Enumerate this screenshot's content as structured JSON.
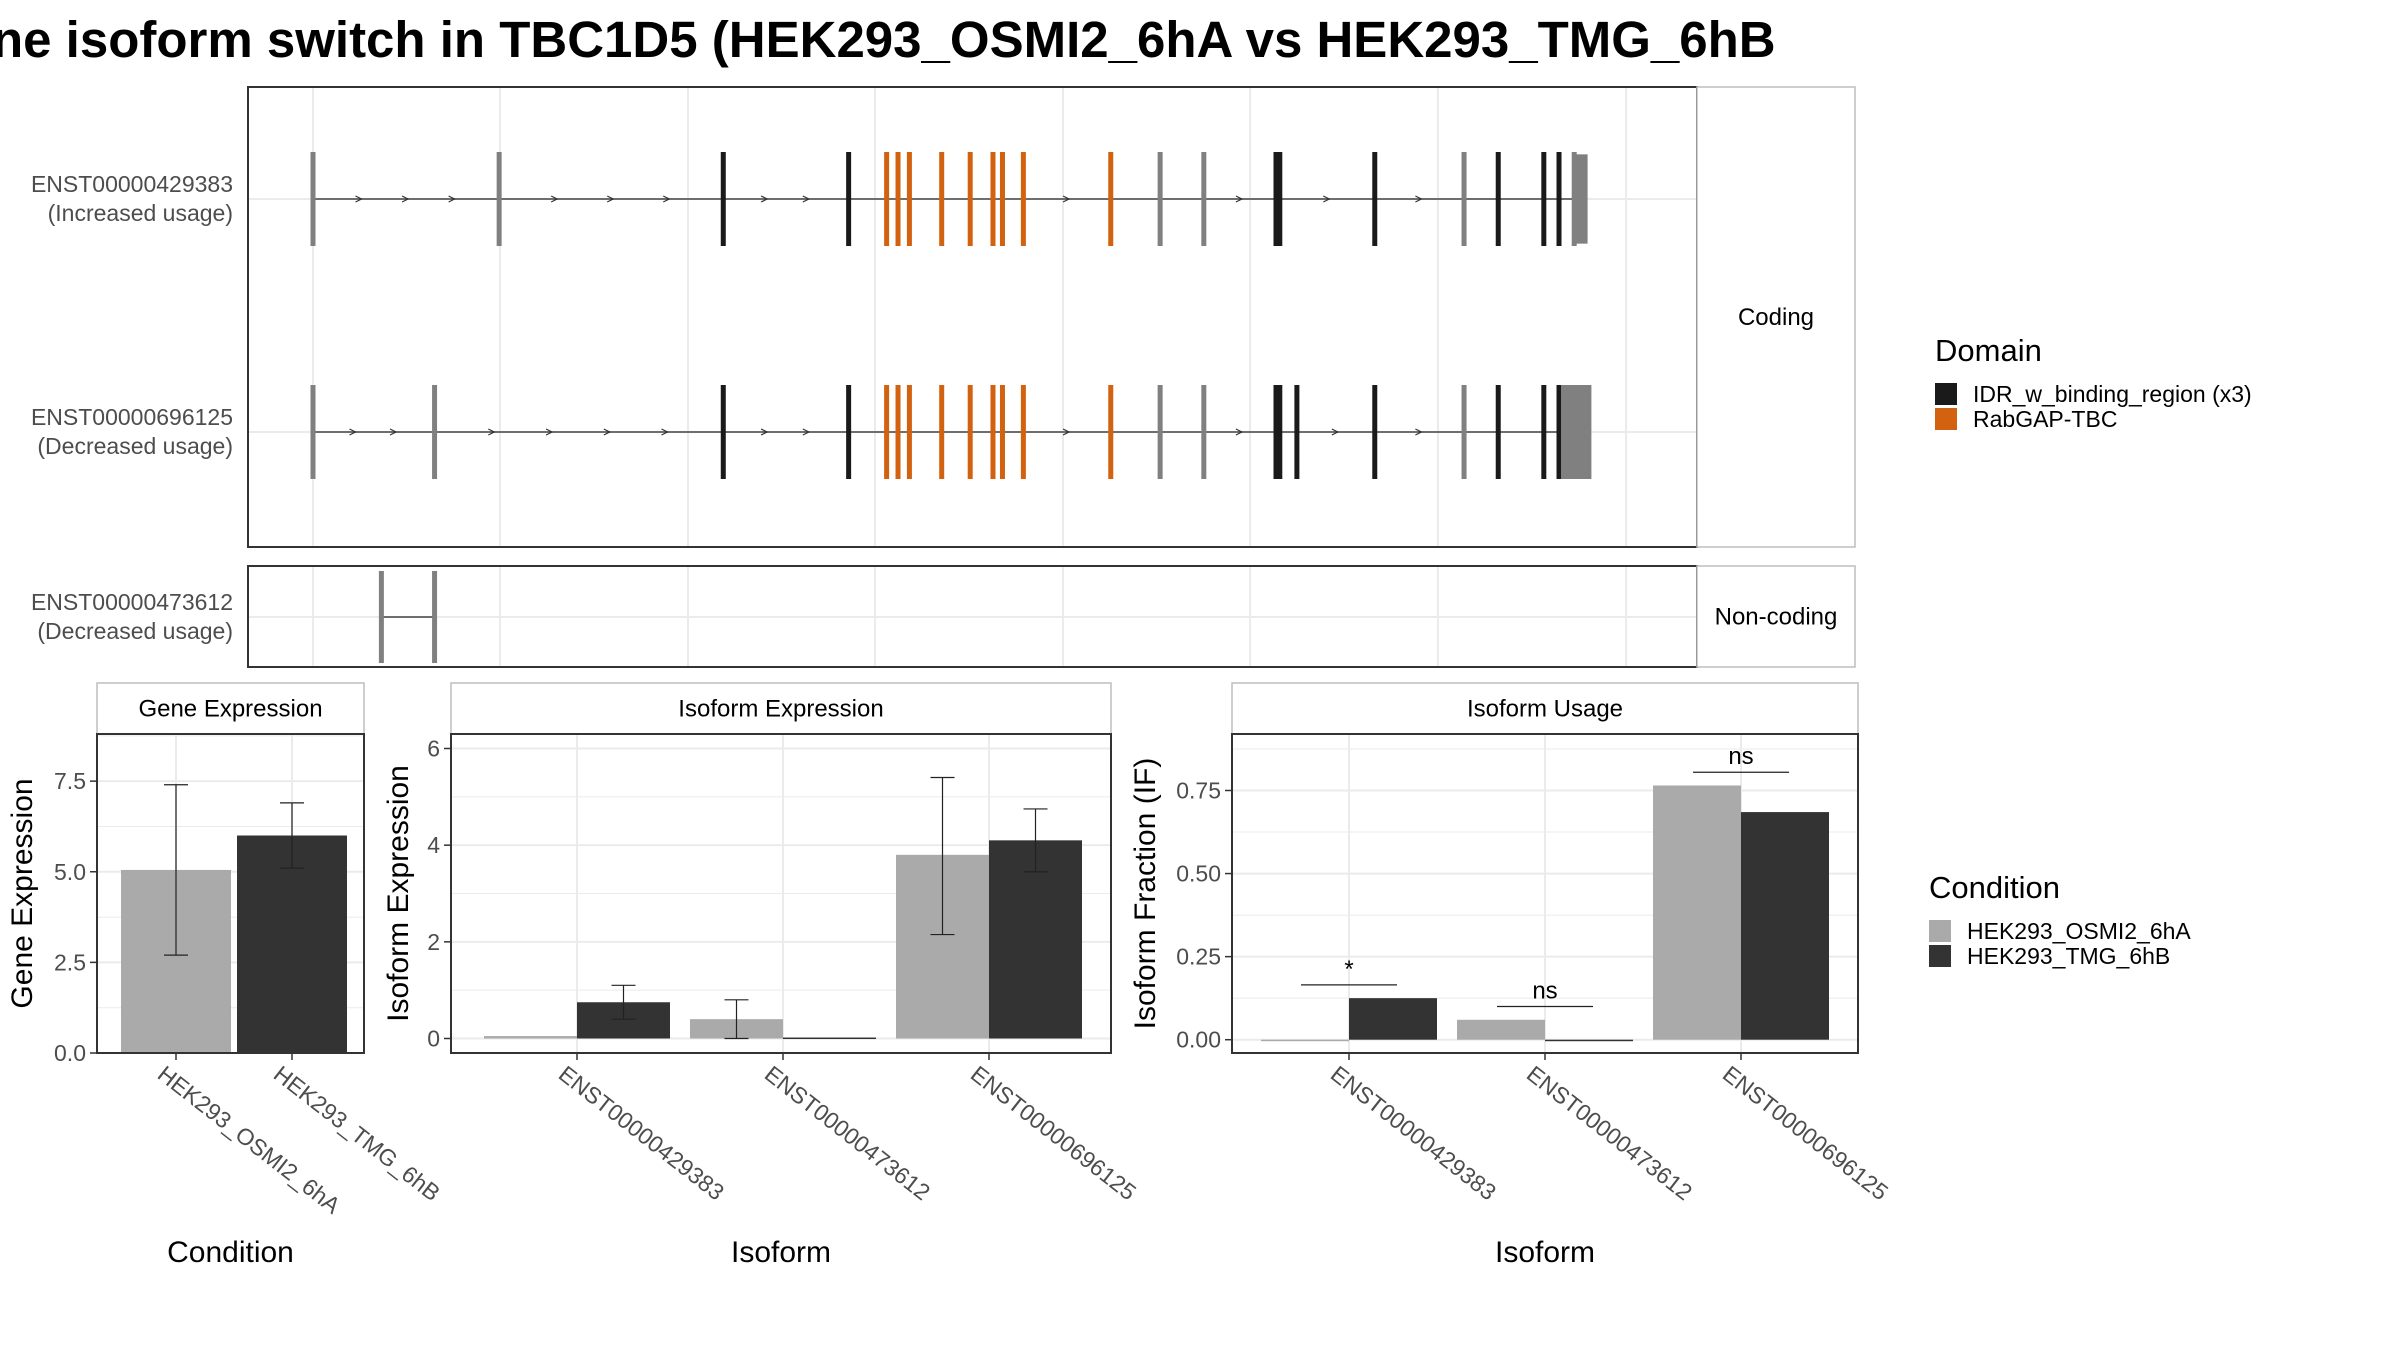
{
  "title": "ne isoform switch in TBC1D5 (HEK293_OSMI2_6hA vs HEK293_TMG_6hB",
  "colors": {
    "domain_idr": "#1a1a1a",
    "domain_rabgap": "#d2620f",
    "exon_plain": "#808080",
    "cond_a": "#aaaaaa",
    "cond_b": "#333333",
    "grid": "#ebebeb"
  },
  "transcripts": {
    "coding_panel_label": "Coding",
    "noncoding_panel_label": "Non-coding",
    "rows": [
      {
        "id": "ENST00000429383",
        "usage": "(Increased usage)",
        "exons": [
          0.0,
          9.8,
          21.6,
          28.2,
          30.2,
          30.8,
          31.4,
          33.1,
          34.6,
          35.8,
          36.3,
          37.4,
          42.0,
          44.6,
          46.9,
          50.7,
          50.9,
          55.9,
          60.6,
          62.4,
          64.8,
          65.6,
          66.4
        ],
        "domains": [
          "plain",
          "plain",
          "idr",
          "idr",
          "rabgap",
          "rabgap",
          "rabgap",
          "rabgap",
          "rabgap",
          "rabgap",
          "rabgap",
          "rabgap",
          "rabgap",
          "plain",
          "plain",
          "idr",
          "idr",
          "idr",
          "plain",
          "idr",
          "idr",
          "idr",
          "plain"
        ],
        "tail_width": 0.6,
        "tail_height": "full"
      },
      {
        "id": "ENST00000696125",
        "usage": "(Decreased usage)",
        "exons": [
          0.0,
          6.4,
          21.6,
          28.2,
          30.2,
          30.8,
          31.4,
          33.1,
          34.6,
          35.8,
          36.3,
          37.4,
          42.0,
          44.6,
          46.9,
          50.7,
          50.9,
          51.8,
          55.9,
          60.6,
          62.4,
          64.8,
          65.6
        ],
        "domains": [
          "plain",
          "plain",
          "idr",
          "idr",
          "rabgap",
          "rabgap",
          "rabgap",
          "rabgap",
          "rabgap",
          "rabgap",
          "rabgap",
          "rabgap",
          "rabgap",
          "plain",
          "plain",
          "idr",
          "idr",
          "idr",
          "idr",
          "plain",
          "idr",
          "idr",
          "idr"
        ],
        "tail_width": 1.6,
        "tail_height": "full"
      },
      {
        "id": "ENST00000473612",
        "usage": "(Decreased usage)",
        "exons": [
          3.6,
          6.4
        ],
        "domains": [
          "plain",
          "plain"
        ],
        "noncoding": true
      }
    ]
  },
  "legend_domain": {
    "title": "Domain",
    "items": [
      {
        "label": "IDR_w_binding_region (x3)",
        "color": "#1a1a1a"
      },
      {
        "label": "RabGAP-TBC",
        "color": "#d2620f"
      }
    ]
  },
  "legend_condition": {
    "title": "Condition",
    "items": [
      {
        "label": "HEK293_OSMI2_6hA",
        "color": "#aaaaaa"
      },
      {
        "label": "HEK293_TMG_6hB",
        "color": "#333333"
      }
    ]
  },
  "chart_data": [
    {
      "type": "bar",
      "title": "Gene Expression",
      "xlabel": "Condition",
      "ylabel": "Gene Expression",
      "categories": [
        "HEK293_OSMI2_6hA",
        "HEK293_TMG_6hB"
      ],
      "values": [
        5.05,
        6.0
      ],
      "errors": [
        [
          2.7,
          7.4
        ],
        [
          5.1,
          6.9
        ]
      ],
      "ylim": [
        0,
        8.8
      ],
      "yticks": [
        "0.0",
        "2.5",
        "5.0",
        "7.5"
      ],
      "ytick_values": [
        0,
        2.5,
        5.0,
        7.5
      ]
    },
    {
      "type": "bar",
      "title": "Isoform Expression",
      "xlabel": "Isoform",
      "ylabel": "Isoform Expression",
      "categories": [
        "ENST00000429383",
        "ENST00000473612",
        "ENST00000696125"
      ],
      "series": [
        {
          "name": "HEK293_OSMI2_6hA",
          "values": [
            0.05,
            0.4,
            3.8
          ],
          "errors": [
            null,
            [
              0.0,
              0.8
            ],
            [
              2.15,
              5.4
            ]
          ]
        },
        {
          "name": "HEK293_TMG_6hB",
          "values": [
            0.75,
            0.02,
            4.1
          ],
          "errors": [
            [
              0.4,
              1.1
            ],
            null,
            [
              3.45,
              4.75
            ]
          ]
        }
      ],
      "ylim": [
        -0.3,
        6.3
      ],
      "yticks": [
        "0",
        "2",
        "4",
        "6"
      ],
      "ytick_values": [
        0,
        2,
        4,
        6
      ]
    },
    {
      "type": "bar",
      "title": "Isoform Usage",
      "xlabel": "Isoform",
      "ylabel": "Isoform Fraction (IF)",
      "categories": [
        "ENST00000429383",
        "ENST00000473612",
        "ENST00000696125"
      ],
      "series": [
        {
          "name": "HEK293_OSMI2_6hA",
          "values": [
            0.0,
            0.06,
            0.765
          ]
        },
        {
          "name": "HEK293_TMG_6hB",
          "values": [
            0.125,
            0.0,
            0.685
          ]
        }
      ],
      "significance": [
        "*",
        "ns",
        "ns"
      ],
      "sig_y": [
        0.165,
        0.1,
        0.805
      ],
      "ylim": [
        -0.04,
        0.92
      ],
      "yticks": [
        "0.00",
        "0.25",
        "0.50",
        "0.75"
      ],
      "ytick_values": [
        0,
        0.25,
        0.5,
        0.75
      ]
    }
  ]
}
